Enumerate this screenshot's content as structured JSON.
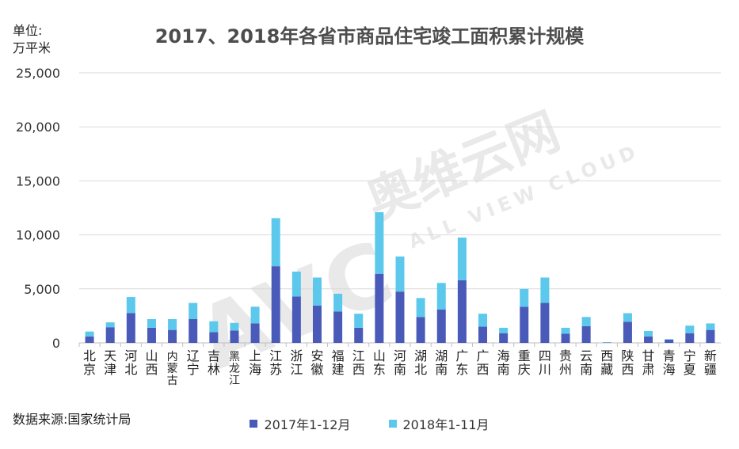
{
  "chart_data": {
    "type": "bar",
    "stacked": true,
    "title": "2017、2018年各省市商品住宅竣工面积累计规模",
    "unit_label": "单位:万平米",
    "ylim": [
      0,
      25000
    ],
    "yticks": [
      "0",
      "5,000",
      "10,000",
      "15,000",
      "20,000",
      "25,000"
    ],
    "ytick_values": [
      0,
      5000,
      10000,
      15000,
      20000,
      25000
    ],
    "grid": true,
    "legend_position": "bottom",
    "categories": [
      "北京",
      "天津",
      "河北",
      "山西",
      "内蒙古",
      "辽宁",
      "吉林",
      "黑龙江",
      "上海",
      "江苏",
      "浙江",
      "安徽",
      "福建",
      "江西",
      "山东",
      "河南",
      "湖北",
      "湖南",
      "广东",
      "广西",
      "海南",
      "重庆",
      "四川",
      "贵州",
      "云南",
      "西藏",
      "陕西",
      "甘肃",
      "青海",
      "宁夏",
      "新疆"
    ],
    "series": [
      {
        "name": "2017年1-12月",
        "color": "#4a5ab8",
        "values": [
          600,
          1450,
          2750,
          1400,
          1200,
          2200,
          1000,
          1150,
          1800,
          7100,
          4300,
          3450,
          2900,
          1400,
          6400,
          4750,
          2400,
          3100,
          5800,
          1500,
          900,
          3350,
          3700,
          850,
          1550,
          30,
          1950,
          600,
          300,
          900,
          1200
        ]
      },
      {
        "name": "2018年1-11月",
        "color": "#5bc8ec",
        "values": [
          450,
          450,
          1500,
          800,
          1000,
          1500,
          1000,
          700,
          1550,
          4450,
          2300,
          2600,
          1650,
          1300,
          5700,
          3250,
          1750,
          2450,
          3950,
          1200,
          500,
          1650,
          2350,
          550,
          850,
          30,
          800,
          500,
          50,
          700,
          600
        ]
      }
    ]
  },
  "source_text": "数据来源:国家统计局",
  "watermark": {
    "brand": "AVC",
    "brand_cn": "奥维云网",
    "tagline": "ALL VIEW CLOUD"
  }
}
